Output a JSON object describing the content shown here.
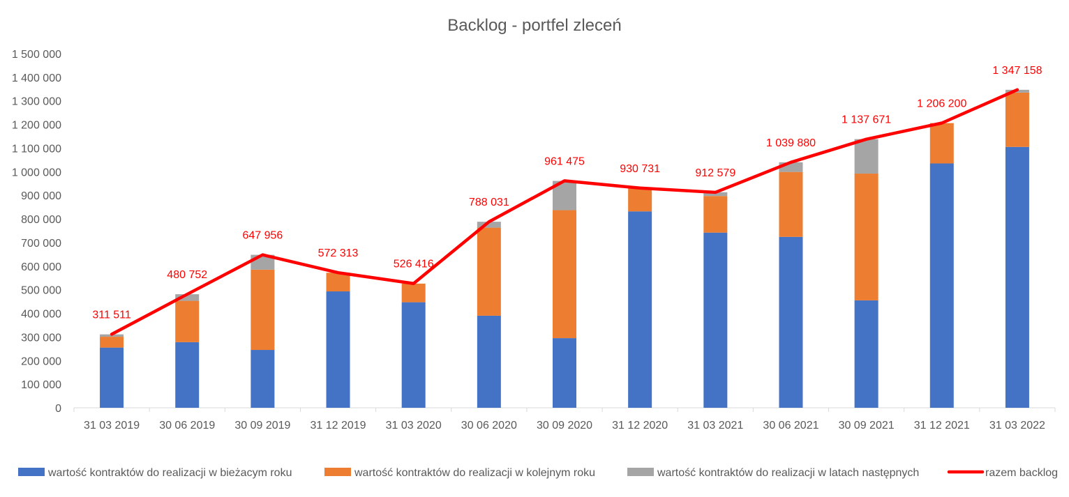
{
  "chart_data": {
    "type": "bar",
    "title": "Backlog - portfel zleceń",
    "xlabel": "",
    "ylabel": "",
    "ylim": [
      0,
      1500000
    ],
    "y_ticks": [
      "0",
      "100 000",
      "200 000",
      "300 000",
      "400 000",
      "500 000",
      "600 000",
      "700 000",
      "800 000",
      "900 000",
      "1 000 000",
      "1 100 000",
      "1 200 000",
      "1 300 000",
      "1 400 000",
      "1 500 000"
    ],
    "y_tick_values": [
      0,
      100000,
      200000,
      300000,
      400000,
      500000,
      600000,
      700000,
      800000,
      900000,
      1000000,
      1100000,
      1200000,
      1300000,
      1400000,
      1500000
    ],
    "grid": false,
    "legend_position": "bottom",
    "categories": [
      "31 03 2019",
      "30 06 2019",
      "30 09 2019",
      "31 12 2019",
      "31 03 2020",
      "30 06 2020",
      "30 09 2020",
      "31 12 2020",
      "31 03 2021",
      "30 06 2021",
      "30 09 2021",
      "31 12 2021",
      "31 03 2022"
    ],
    "series": [
      {
        "name": "wartość kontraktów do realizacji w bieżacym roku",
        "kind": "stacked-bar",
        "color": "#4472C4",
        "values": [
          255000,
          278000,
          245000,
          493000,
          447000,
          390000,
          295000,
          832000,
          742000,
          724000,
          455000,
          1035000,
          1105000
        ]
      },
      {
        "name": "wartość kontraktów do realizacji w kolejnym roku",
        "kind": "stacked-bar",
        "color": "#ED7D31",
        "values": [
          46000,
          175000,
          340000,
          79000,
          79000,
          373000,
          542000,
          99000,
          155000,
          275000,
          537000,
          171000,
          230000
        ]
      },
      {
        "name": "wartość kontraktów do realizacji w latach następnych",
        "kind": "stacked-bar",
        "color": "#A5A5A5",
        "values": [
          10000,
          28000,
          63000,
          0,
          0,
          25000,
          124000,
          0,
          16000,
          41000,
          146000,
          0,
          12000
        ]
      },
      {
        "name": "razem backlog",
        "kind": "line",
        "color": "#FF0000",
        "values": [
          311511,
          480752,
          647956,
          572313,
          526416,
          788031,
          961475,
          930731,
          912579,
          1039880,
          1137671,
          1206200,
          1347158
        ],
        "labels": [
          "311 511",
          "480 752",
          "647 956",
          "572 313",
          "526 416",
          "788 031",
          "961 475",
          "930 731",
          "912 579",
          "1 039 880",
          "1 137 671",
          "1 206 200",
          "1 347 158"
        ]
      }
    ]
  }
}
